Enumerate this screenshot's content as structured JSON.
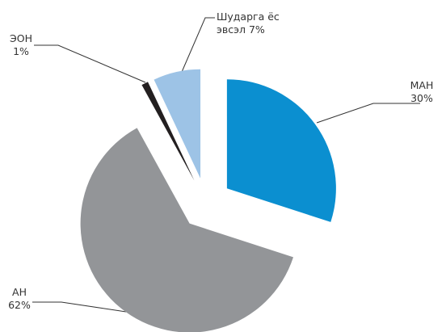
{
  "chart_data": {
    "type": "pie",
    "categories": [
      "МАН",
      "АН",
      "ЭОН",
      "Шударга ёс эвсэл"
    ],
    "values": [
      30,
      62,
      1,
      7
    ],
    "value_labels": [
      "30%",
      "62%",
      "1%",
      "7%"
    ],
    "colors": [
      "#0b8fd0",
      "#939598",
      "#231f20",
      "#9dc3e6"
    ]
  }
}
